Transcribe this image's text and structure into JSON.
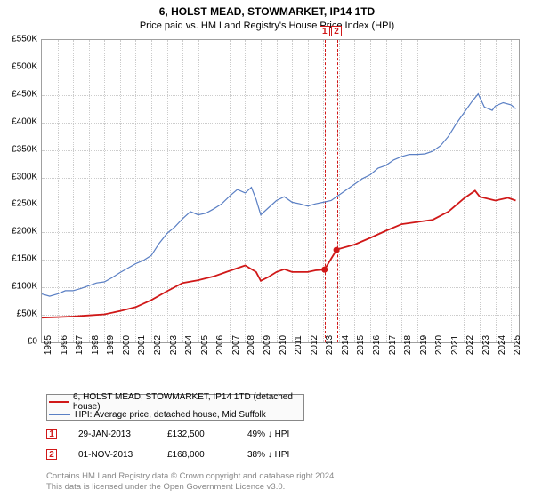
{
  "title_line1": "6, HOLST MEAD, STOWMARKET, IP14 1TD",
  "title_line2": "Price paid vs. HM Land Registry's House Price Index (HPI)",
  "chart": {
    "type": "line",
    "x_years": [
      1995,
      1996,
      1997,
      1998,
      1999,
      2000,
      2001,
      2002,
      2003,
      2004,
      2005,
      2006,
      2007,
      2008,
      2009,
      2010,
      2011,
      2012,
      2013,
      2014,
      2015,
      2016,
      2017,
      2018,
      2019,
      2020,
      2021,
      2022,
      2023,
      2024,
      2025
    ],
    "y_ticks": [
      0,
      50000,
      100000,
      150000,
      200000,
      250000,
      300000,
      350000,
      400000,
      450000,
      500000,
      550000
    ],
    "y_tick_labels": [
      "£0",
      "£50K",
      "£100K",
      "£150K",
      "£200K",
      "£250K",
      "£300K",
      "£350K",
      "£400K",
      "£450K",
      "£500K",
      "£550K"
    ],
    "ylim": [
      0,
      550000
    ],
    "xlim": [
      1995,
      2025.5
    ],
    "background_color": "#ffffff",
    "grid_color": "#cccccc",
    "series": [
      {
        "name": "property",
        "label": "6, HOLST MEAD, STOWMARKET, IP14 1TD (detached house)",
        "color": "#d01818",
        "width": 1.8,
        "data": [
          [
            1995,
            45000
          ],
          [
            1996,
            46000
          ],
          [
            1997,
            47000
          ],
          [
            1998,
            49000
          ],
          [
            1999,
            51000
          ],
          [
            2000,
            57000
          ],
          [
            2001,
            64000
          ],
          [
            2002,
            77000
          ],
          [
            2003,
            93000
          ],
          [
            2004,
            108000
          ],
          [
            2005,
            113000
          ],
          [
            2006,
            120000
          ],
          [
            2007,
            130000
          ],
          [
            2008,
            140000
          ],
          [
            2008.7,
            128000
          ],
          [
            2009,
            112000
          ],
          [
            2009.5,
            119000
          ],
          [
            2010,
            128000
          ],
          [
            2010.5,
            133000
          ],
          [
            2011,
            128000
          ],
          [
            2012,
            128000
          ],
          [
            2012.5,
            131000
          ],
          [
            2013.08,
            132500
          ],
          [
            2013.84,
            168000
          ],
          [
            2014,
            170000
          ],
          [
            2015,
            178000
          ],
          [
            2016,
            190000
          ],
          [
            2017,
            203000
          ],
          [
            2018,
            215000
          ],
          [
            2019,
            219000
          ],
          [
            2020,
            223000
          ],
          [
            2021,
            238000
          ],
          [
            2022,
            262000
          ],
          [
            2022.7,
            276000
          ],
          [
            2023,
            265000
          ],
          [
            2024,
            258000
          ],
          [
            2024.8,
            263000
          ],
          [
            2025.3,
            258000
          ]
        ]
      },
      {
        "name": "hpi",
        "label": "HPI: Average price, detached house, Mid Suffolk",
        "color": "#5a7fc4",
        "width": 1.2,
        "data": [
          [
            1995,
            88000
          ],
          [
            1995.5,
            84000
          ],
          [
            1996,
            88000
          ],
          [
            1996.5,
            94000
          ],
          [
            1997,
            94000
          ],
          [
            1997.5,
            98000
          ],
          [
            1998,
            103000
          ],
          [
            1998.5,
            108000
          ],
          [
            1999,
            110000
          ],
          [
            1999.5,
            118000
          ],
          [
            2000,
            127000
          ],
          [
            2000.5,
            135000
          ],
          [
            2001,
            143000
          ],
          [
            2001.5,
            149000
          ],
          [
            2002,
            158000
          ],
          [
            2002.5,
            180000
          ],
          [
            2003,
            198000
          ],
          [
            2003.5,
            210000
          ],
          [
            2004,
            225000
          ],
          [
            2004.5,
            238000
          ],
          [
            2005,
            232000
          ],
          [
            2005.5,
            235000
          ],
          [
            2006,
            243000
          ],
          [
            2006.5,
            252000
          ],
          [
            2007,
            266000
          ],
          [
            2007.5,
            278000
          ],
          [
            2008,
            272000
          ],
          [
            2008.4,
            282000
          ],
          [
            2008.7,
            260000
          ],
          [
            2009,
            232000
          ],
          [
            2009.5,
            245000
          ],
          [
            2010,
            258000
          ],
          [
            2010.5,
            265000
          ],
          [
            2011,
            255000
          ],
          [
            2011.5,
            252000
          ],
          [
            2012,
            248000
          ],
          [
            2012.5,
            252000
          ],
          [
            2013,
            255000
          ],
          [
            2013.5,
            258000
          ],
          [
            2014,
            268000
          ],
          [
            2014.5,
            278000
          ],
          [
            2015,
            288000
          ],
          [
            2015.5,
            298000
          ],
          [
            2016,
            305000
          ],
          [
            2016.5,
            317000
          ],
          [
            2017,
            322000
          ],
          [
            2017.5,
            332000
          ],
          [
            2018,
            338000
          ],
          [
            2018.5,
            342000
          ],
          [
            2019,
            342000
          ],
          [
            2019.5,
            343000
          ],
          [
            2020,
            348000
          ],
          [
            2020.5,
            358000
          ],
          [
            2021,
            375000
          ],
          [
            2021.5,
            398000
          ],
          [
            2022,
            418000
          ],
          [
            2022.5,
            438000
          ],
          [
            2022.9,
            452000
          ],
          [
            2023.3,
            428000
          ],
          [
            2023.8,
            422000
          ],
          [
            2024,
            430000
          ],
          [
            2024.5,
            436000
          ],
          [
            2025,
            432000
          ],
          [
            2025.3,
            425000
          ]
        ]
      }
    ],
    "sale_band": {
      "start": 2013.08,
      "end": 2013.84
    },
    "sale_markers": [
      {
        "label": "1",
        "x": 2013.08,
        "y": 132500
      },
      {
        "label": "2",
        "x": 2013.84,
        "y": 168000
      }
    ],
    "label_fontsize": 10
  },
  "legend": {
    "row1_color": "#d01818",
    "row1_text": "6, HOLST MEAD, STOWMARKET, IP14 1TD (detached house)",
    "row2_color": "#5a7fc4",
    "row2_text": "HPI: Average price, detached house, Mid Suffolk"
  },
  "sales": [
    {
      "marker": "1",
      "date": "29-JAN-2013",
      "price": "£132,500",
      "vs_hpi": "49% ↓ HPI"
    },
    {
      "marker": "2",
      "date": "01-NOV-2013",
      "price": "£168,000",
      "vs_hpi": "38% ↓ HPI"
    }
  ],
  "attribution_line1": "Contains HM Land Registry data © Crown copyright and database right 2024.",
  "attribution_line2": "This data is licensed under the Open Government Licence v3.0."
}
